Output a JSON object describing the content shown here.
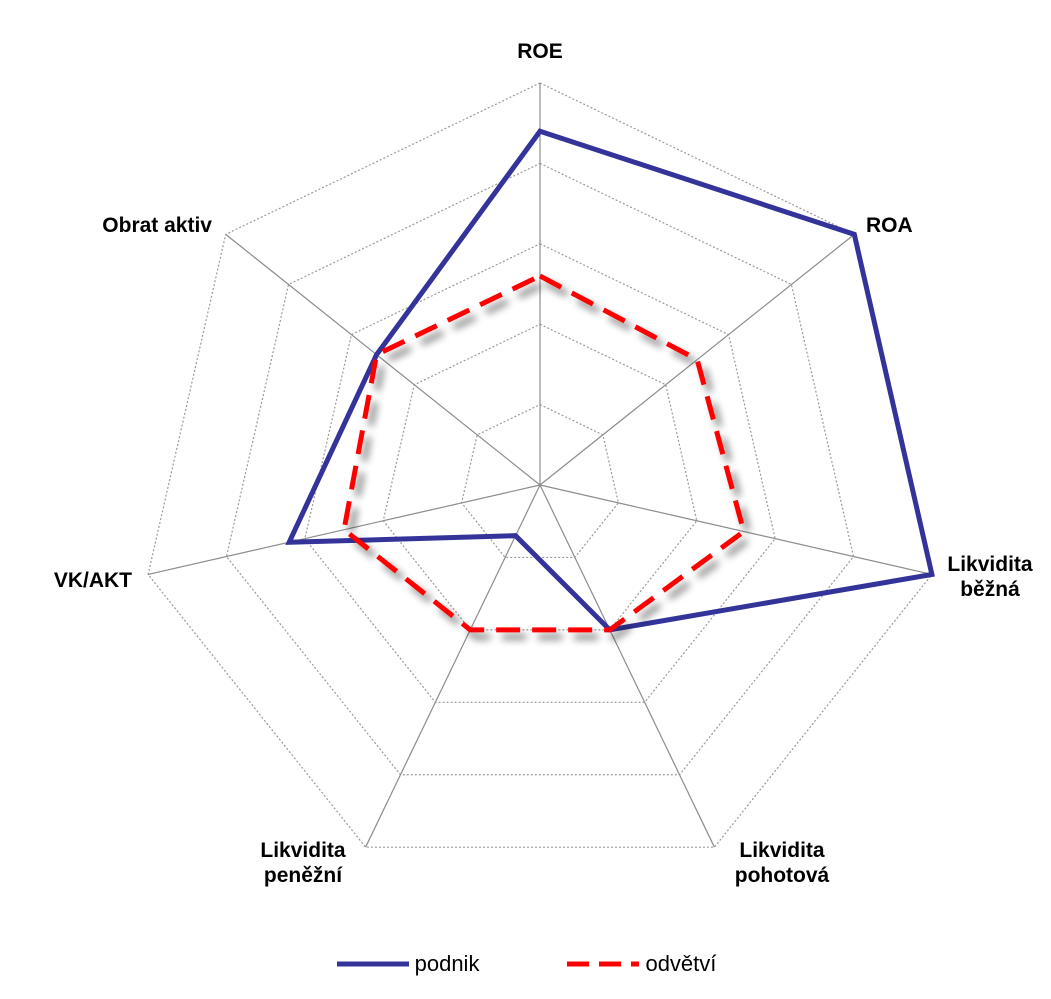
{
  "chart_data": {
    "type": "radar",
    "title": "",
    "categories": [
      "ROE",
      "ROA",
      "Likvidita běžná",
      "Likvidita pohotová",
      "Likvidita peněžní",
      "VK/AKT",
      "Obrat aktiv"
    ],
    "category_labels": [
      [
        "ROE"
      ],
      [
        "ROA"
      ],
      [
        "Likvidita",
        "běžná"
      ],
      [
        "Likvidita",
        "pohotová"
      ],
      [
        "Likvidita",
        "peněžní"
      ],
      [
        "VK/AKT"
      ],
      [
        "Obrat aktiv"
      ]
    ],
    "rlim": [
      0,
      5
    ],
    "grid_rings": 5,
    "grid": true,
    "legend_position": "bottom",
    "series": [
      {
        "name": "podnik",
        "values": [
          4.4,
          5.0,
          5.0,
          2.0,
          0.7,
          3.2,
          2.6
        ],
        "color": "#333399",
        "style": "solid"
      },
      {
        "name": "odvětví",
        "values": [
          2.6,
          2.5,
          2.6,
          2.0,
          2.0,
          2.5,
          2.6
        ],
        "color": "#ff0000",
        "style": "dashed"
      }
    ]
  },
  "legend": {
    "items": [
      {
        "label": "podnik",
        "color": "#333399",
        "style": "solid"
      },
      {
        "label": "odvětví",
        "color": "#ff0000",
        "style": "dashed"
      }
    ]
  }
}
